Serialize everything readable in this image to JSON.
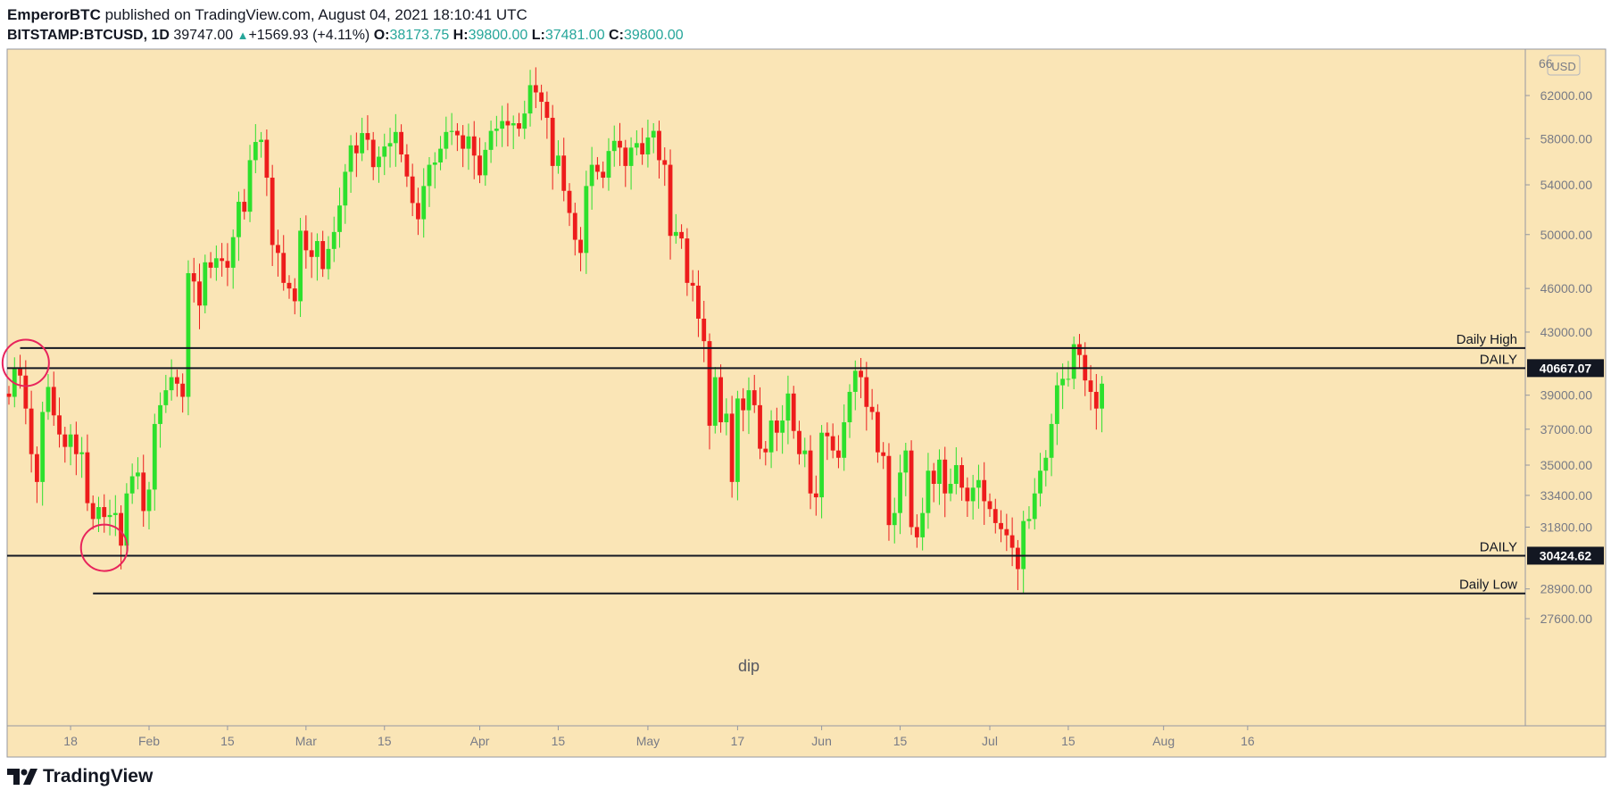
{
  "header": {
    "author": "EmperorBTC",
    "published_text": "published on TradingView.com, August 04, 2021 18:10:41 UTC"
  },
  "symbol_bar": {
    "symbol": "BITSTAMP:BTCUSD, 1D",
    "last": "39747.00",
    "change": "+1569.93 (+4.11%)",
    "o_label": "O:",
    "o": "38173.75",
    "h_label": "H:",
    "h": "39800.00",
    "l_label": "L:",
    "l": "37481.00",
    "c_label": "C:",
    "c": "39800.00"
  },
  "brand": {
    "name": "TradingView"
  },
  "colors": {
    "background": "#fae5b6",
    "up": "#2de02d",
    "down": "#ed1c1c",
    "circle": "#e8245c",
    "text": "#131722"
  },
  "chart_data": {
    "type": "candlestick",
    "currency_label": "USD",
    "x_tick_labels": [
      "18",
      "Feb",
      "15",
      "Mar",
      "15",
      "Apr",
      "15",
      "May",
      "17",
      "Jun",
      "15",
      "Jul",
      "15",
      "Aug",
      "16"
    ],
    "y_tick_labels": [
      "62000.00",
      "58000.00",
      "54000.00",
      "50000.00",
      "46000.00",
      "43000.00",
      "39000.00",
      "37000.00",
      "35000.00",
      "33400.00",
      "31800.00",
      "28900.00",
      "27600.00"
    ],
    "y_top_partial_label": "66",
    "y_scale": "log",
    "y_range": [
      26700,
      67000
    ],
    "x_range": [
      "2021-01-06",
      "2021-08-27"
    ],
    "horizontal_lines": [
      {
        "label": "Daily High",
        "price": 41950,
        "from": "2021-01-09",
        "to": "end"
      },
      {
        "label": "DAILY",
        "price": 40667.07,
        "price_label": "40667.07",
        "from": "start",
        "to": "end"
      },
      {
        "label": "DAILY",
        "price": 30424.62,
        "price_label": "30424.62",
        "from": "start",
        "to": "end"
      },
      {
        "label": "Daily Low",
        "price": 28700,
        "from": "2021-01-22",
        "to": "end"
      }
    ],
    "annotations": [
      {
        "text": "dip",
        "date": "2021-05-19"
      }
    ],
    "circles": [
      {
        "date": "2021-01-10",
        "price": 41000
      },
      {
        "date": "2021-01-24",
        "price": 30800
      }
    ],
    "start_date": "2021-01-07",
    "closes": [
      38900,
      40700,
      40200,
      38200,
      35600,
      34100,
      38000,
      39500,
      37800,
      36700,
      36000,
      36700,
      35600,
      35700,
      33000,
      32200,
      32800,
      32300,
      32400,
      32500,
      30900,
      33500,
      34400,
      34600,
      32600,
      33700,
      37300,
      38400,
      39300,
      40100,
      39700,
      38900,
      47100,
      46500,
      44800,
      47900,
      47500,
      48200,
      48000,
      47500,
      49800,
      52600,
      51800,
      56100,
      57700,
      57900,
      54600,
      49200,
      48600,
      46400,
      46000,
      45100,
      50300,
      48800,
      48300,
      49500,
      47400,
      48900,
      50200,
      52300,
      55100,
      57400,
      56700,
      58500,
      57900,
      55500,
      56400,
      57300,
      57600,
      58600,
      56600,
      54700,
      52500,
      51200,
      53900,
      55700,
      55900,
      57100,
      58600,
      58700,
      58300,
      57100,
      58200,
      56500,
      54800,
      57000,
      58700,
      58900,
      59600,
      59200,
      59400,
      58900,
      60300,
      63000,
      62300,
      61400,
      59900,
      55600,
      56500,
      53500,
      51700,
      49600,
      48600,
      53900,
      55700,
      55100,
      54600,
      56900,
      57800,
      57200,
      55600,
      57200,
      57600,
      56600,
      58100,
      58700,
      56100,
      55700,
      49900,
      50200,
      49700,
      46400,
      46200,
      43900,
      42400,
      37200,
      40100,
      37400,
      37900,
      34100,
      38800,
      38100,
      39300,
      38400,
      35900,
      35700,
      37500,
      36800,
      37500,
      39100,
      36900,
      35600,
      35800,
      33500,
      33300,
      36800,
      36600,
      35800,
      35400,
      37400,
      39200,
      40500,
      40100,
      38300,
      38000,
      35700,
      35500,
      31900,
      32500,
      34600,
      35800,
      31800,
      31300,
      32500,
      34700,
      34000,
      35300,
      33500,
      34000,
      35000,
      33800,
      33100,
      33800,
      34200,
      33100,
      32700,
      32000,
      31700,
      31400,
      30800,
      29800,
      32100,
      32200,
      33500,
      34700,
      35400,
      37300,
      39600,
      40000,
      40000,
      42200,
      41500,
      39900,
      39200,
      38200,
      39700
    ]
  }
}
